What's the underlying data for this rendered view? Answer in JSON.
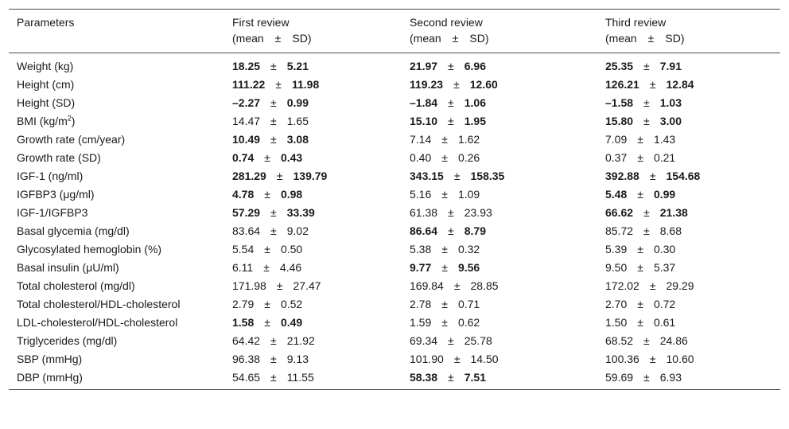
{
  "columns": [
    {
      "line1": "Parameters",
      "line2": ""
    },
    {
      "line1": "First review",
      "line2": "(mean ± SD)"
    },
    {
      "line1": "Second review",
      "line2": "(mean ± SD)"
    },
    {
      "line1": "Third review",
      "line2": "(mean ± SD)"
    }
  ],
  "pm_symbol": "±",
  "rows": [
    {
      "param": "Weight (kg)",
      "cells": [
        {
          "mean": "18.25",
          "sd": "5.21",
          "bold": true
        },
        {
          "mean": "21.97",
          "sd": "6.96",
          "bold": true
        },
        {
          "mean": "25.35",
          "sd": "7.91",
          "bold": true
        }
      ]
    },
    {
      "param": "Height (cm)",
      "cells": [
        {
          "mean": "111.22",
          "sd": "11.98",
          "bold": true
        },
        {
          "mean": "119.23",
          "sd": "12.60",
          "bold": true
        },
        {
          "mean": "126.21",
          "sd": "12.84",
          "bold": true
        }
      ]
    },
    {
      "param": "Height (SD)",
      "cells": [
        {
          "mean": "–2.27",
          "sd": "0.99",
          "bold": true
        },
        {
          "mean": "–1.84",
          "sd": "1.06",
          "bold": true
        },
        {
          "mean": "–1.58",
          "sd": "1.03",
          "bold": true
        }
      ]
    },
    {
      "param": "BMI (kg/m",
      "param_sup": "2",
      "param_after": ")",
      "cells": [
        {
          "mean": "14.47",
          "sd": "1.65",
          "bold": false
        },
        {
          "mean": "15.10",
          "sd": "1.95",
          "bold": true
        },
        {
          "mean": "15.80",
          "sd": "3.00",
          "bold": true
        }
      ]
    },
    {
      "param": "Growth rate (cm/year)",
      "cells": [
        {
          "mean": "10.49",
          "sd": "3.08",
          "bold": true
        },
        {
          "mean": "7.14",
          "sd": "1.62",
          "bold": false
        },
        {
          "mean": "7.09",
          "sd": "1.43",
          "bold": false
        }
      ]
    },
    {
      "param": "Growth rate (SD)",
      "cells": [
        {
          "mean": "0.74",
          "sd": "0.43",
          "bold": true
        },
        {
          "mean": "0.40",
          "sd": "0.26",
          "bold": false
        },
        {
          "mean": "0.37",
          "sd": "0.21",
          "bold": false
        }
      ]
    },
    {
      "param": "IGF-1 (ng/ml)",
      "cells": [
        {
          "mean": "281.29",
          "sd": "139.79",
          "bold": true
        },
        {
          "mean": "343.15",
          "sd": "158.35",
          "bold": true
        },
        {
          "mean": "392.88",
          "sd": "154.68",
          "bold": true
        }
      ]
    },
    {
      "param": "IGFBP3 (μg/ml)",
      "cells": [
        {
          "mean": "4.78",
          "sd": "0.98",
          "bold": true
        },
        {
          "mean": "5.16",
          "sd": "1.09",
          "bold": false
        },
        {
          "mean": "5.48",
          "sd": "0.99",
          "bold": true
        }
      ]
    },
    {
      "param": "IGF-1/IGFBP3",
      "cells": [
        {
          "mean": "57.29",
          "sd": "33.39",
          "bold": true
        },
        {
          "mean": "61.38",
          "sd": "23.93",
          "bold": false
        },
        {
          "mean": "66.62",
          "sd": "21.38",
          "bold": true
        }
      ]
    },
    {
      "param": "Basal glycemia (mg/dl)",
      "cells": [
        {
          "mean": "83.64",
          "sd": "9.02",
          "bold": false
        },
        {
          "mean": "86.64",
          "sd": "8.79",
          "bold": true
        },
        {
          "mean": "85.72",
          "sd": "8.68",
          "bold": false
        }
      ]
    },
    {
      "param": "Glycosylated hemoglobin (%)",
      "cells": [
        {
          "mean": "5.54",
          "sd": "0.50",
          "bold": false
        },
        {
          "mean": "5.38",
          "sd": "0.32",
          "bold": false
        },
        {
          "mean": "5.39",
          "sd": "0.30",
          "bold": false
        }
      ]
    },
    {
      "param": "Basal insulin (μU/ml)",
      "cells": [
        {
          "mean": "6.11",
          "sd": "4.46",
          "bold": false
        },
        {
          "mean": "9.77",
          "sd": "9.56",
          "bold": true
        },
        {
          "mean": "9.50",
          "sd": "5.37",
          "bold": false
        }
      ]
    },
    {
      "param": "Total cholesterol (mg/dl)",
      "cells": [
        {
          "mean": "171.98",
          "sd": "27.47",
          "bold": false
        },
        {
          "mean": "169.84",
          "sd": "28.85",
          "bold": false
        },
        {
          "mean": "172.02",
          "sd": "29.29",
          "bold": false
        }
      ]
    },
    {
      "param": "Total cholesterol/HDL-cholesterol",
      "cells": [
        {
          "mean": "2.79",
          "sd": "0.52",
          "bold": false
        },
        {
          "mean": "2.78",
          "sd": "0.71",
          "bold": false
        },
        {
          "mean": "2.70",
          "sd": "0.72",
          "bold": false
        }
      ]
    },
    {
      "param": "LDL-cholesterol/HDL-cholesterol",
      "cells": [
        {
          "mean": "1.58",
          "sd": "0.49",
          "bold": true
        },
        {
          "mean": "1.59",
          "sd": "0.62",
          "bold": false
        },
        {
          "mean": "1.50",
          "sd": "0.61",
          "bold": false
        }
      ]
    },
    {
      "param": "Triglycerides (mg/dl)",
      "cells": [
        {
          "mean": "64.42",
          "sd": "21.92",
          "bold": false
        },
        {
          "mean": "69.34",
          "sd": "25.78",
          "bold": false
        },
        {
          "mean": "68.52",
          "sd": "24.86",
          "bold": false
        }
      ]
    },
    {
      "param": "SBP (mmHg)",
      "cells": [
        {
          "mean": "96.38",
          "sd": "9.13",
          "bold": false
        },
        {
          "mean": "101.90",
          "sd": "14.50",
          "bold": false
        },
        {
          "mean": "100.36",
          "sd": "10.60",
          "bold": false
        }
      ]
    },
    {
      "param": "DBP (mmHg)",
      "cells": [
        {
          "mean": "54.65",
          "sd": "11.55",
          "bold": false
        },
        {
          "mean": "58.38",
          "sd": "7.51",
          "bold": true
        },
        {
          "mean": "59.69",
          "sd": "6.93",
          "bold": false
        }
      ]
    }
  ]
}
